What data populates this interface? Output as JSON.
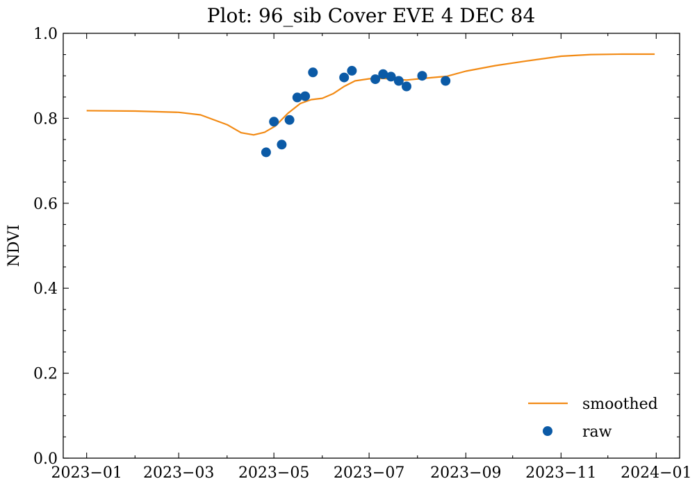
{
  "chart_data": {
    "type": "line",
    "title": "Plot: 96_sib Cover EVE 4 DEC 84",
    "xlabel": "",
    "ylabel": "NDVI",
    "xlim": [
      "2022-12-17",
      "2024-01-16"
    ],
    "ylim": [
      0.0,
      1.0
    ],
    "x_ticks": [
      "2023-01-01",
      "2023-03-01",
      "2023-05-01",
      "2023-07-01",
      "2023-09-01",
      "2023-11-01",
      "2024-01-01"
    ],
    "x_tick_labels": [
      "2023−01",
      "2023−03",
      "2023−05",
      "2023−07",
      "2023−09",
      "2023−11",
      "2024−01"
    ],
    "y_ticks": [
      0.0,
      0.2,
      0.4,
      0.6,
      0.8,
      1.0
    ],
    "y_tick_labels": [
      "0.0",
      "0.2",
      "0.4",
      "0.6",
      "0.8",
      "1.0"
    ],
    "grid": false,
    "legend_position": "lower-right",
    "series": [
      {
        "name": "smoothed",
        "kind": "line",
        "color": "#f28a14",
        "points": [
          [
            "2023-01-01",
            0.818
          ],
          [
            "2023-02-01",
            0.817
          ],
          [
            "2023-03-01",
            0.814
          ],
          [
            "2023-03-15",
            0.808
          ],
          [
            "2023-04-01",
            0.785
          ],
          [
            "2023-04-10",
            0.766
          ],
          [
            "2023-04-18",
            0.761
          ],
          [
            "2023-04-25",
            0.767
          ],
          [
            "2023-05-02",
            0.782
          ],
          [
            "2023-05-10",
            0.812
          ],
          [
            "2023-05-18",
            0.835
          ],
          [
            "2023-05-25",
            0.844
          ],
          [
            "2023-06-01",
            0.847
          ],
          [
            "2023-06-08",
            0.858
          ],
          [
            "2023-06-15",
            0.875
          ],
          [
            "2023-06-22",
            0.888
          ],
          [
            "2023-07-01",
            0.893
          ],
          [
            "2023-07-10",
            0.894
          ],
          [
            "2023-07-25",
            0.89
          ],
          [
            "2023-08-05",
            0.894
          ],
          [
            "2023-08-20",
            0.899
          ],
          [
            "2023-09-01",
            0.911
          ],
          [
            "2023-09-20",
            0.924
          ],
          [
            "2023-10-10",
            0.935
          ],
          [
            "2023-11-01",
            0.946
          ],
          [
            "2023-11-20",
            0.95
          ],
          [
            "2023-12-10",
            0.951
          ],
          [
            "2023-12-31",
            0.951
          ]
        ]
      },
      {
        "name": "raw",
        "kind": "scatter",
        "color": "#0b5aa6",
        "points": [
          [
            "2023-04-26",
            0.72
          ],
          [
            "2023-05-01",
            0.792
          ],
          [
            "2023-05-06",
            0.738
          ],
          [
            "2023-05-11",
            0.796
          ],
          [
            "2023-05-16",
            0.849
          ],
          [
            "2023-05-21",
            0.852
          ],
          [
            "2023-05-26",
            0.908
          ],
          [
            "2023-06-15",
            0.896
          ],
          [
            "2023-06-20",
            0.912
          ],
          [
            "2023-07-05",
            0.892
          ],
          [
            "2023-07-10",
            0.904
          ],
          [
            "2023-07-15",
            0.898
          ],
          [
            "2023-07-20",
            0.888
          ],
          [
            "2023-07-25",
            0.875
          ],
          [
            "2023-08-04",
            0.9
          ],
          [
            "2023-08-19",
            0.888
          ]
        ]
      }
    ]
  }
}
